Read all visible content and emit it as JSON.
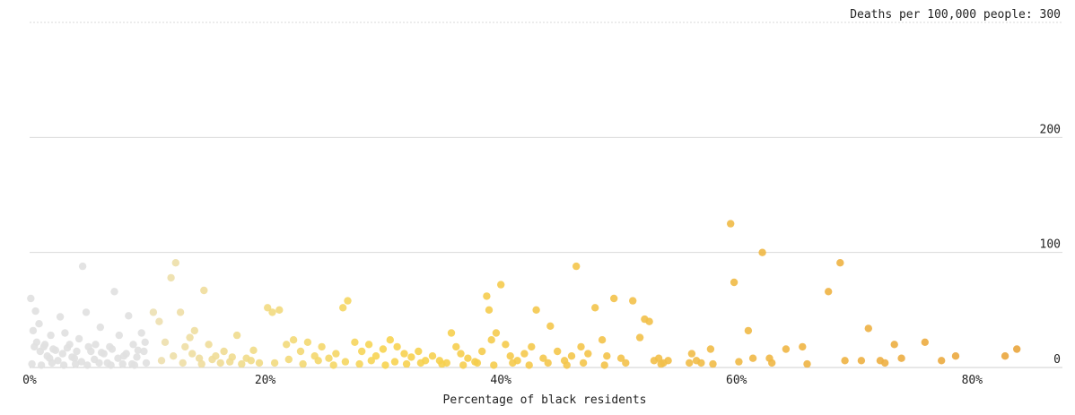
{
  "chart_data": {
    "type": "scatter",
    "xlabel": "Percentage of black residents",
    "ylabel_prefix": "Deaths per 100,000 people:",
    "xlim": [
      0,
      88
    ],
    "ylim": [
      0,
      300
    ],
    "x_ticks": [
      {
        "value": 0,
        "label": "0%"
      },
      {
        "value": 20,
        "label": "20%"
      },
      {
        "value": 40,
        "label": "40%"
      },
      {
        "value": 60,
        "label": "60%"
      },
      {
        "value": 80,
        "label": "80%"
      }
    ],
    "y_ticks": [
      {
        "value": 0,
        "label": "0"
      },
      {
        "value": 100,
        "label": "100"
      },
      {
        "value": 200,
        "label": "200"
      },
      {
        "value": 300,
        "label": "300"
      }
    ],
    "grid": true,
    "color_scale": {
      "low": "#e0e0e0",
      "mid": "#f7d451",
      "high": "#e9a43d"
    },
    "points": [
      [
        0.1,
        60
      ],
      [
        0.3,
        32
      ],
      [
        0.5,
        49
      ],
      [
        0.6,
        22
      ],
      [
        0.8,
        38
      ],
      [
        1.2,
        18
      ],
      [
        1.5,
        10
      ],
      [
        1.8,
        28
      ],
      [
        2.2,
        15
      ],
      [
        2.6,
        44
      ],
      [
        3.0,
        30
      ],
      [
        3.4,
        20
      ],
      [
        3.8,
        8
      ],
      [
        4.2,
        25
      ],
      [
        4.5,
        88
      ],
      [
        4.8,
        48
      ],
      [
        5.2,
        14
      ],
      [
        5.6,
        20
      ],
      [
        6.0,
        35
      ],
      [
        6.3,
        12
      ],
      [
        6.8,
        18
      ],
      [
        7.2,
        66
      ],
      [
        7.6,
        28
      ],
      [
        8.0,
        10
      ],
      [
        8.4,
        45
      ],
      [
        8.8,
        20
      ],
      [
        9.2,
        15
      ],
      [
        9.5,
        30
      ],
      [
        9.8,
        22
      ],
      [
        0.4,
        18
      ],
      [
        0.9,
        14
      ],
      [
        1.3,
        20
      ],
      [
        1.7,
        8
      ],
      [
        2.0,
        16
      ],
      [
        2.4,
        6
      ],
      [
        2.8,
        12
      ],
      [
        3.2,
        17
      ],
      [
        3.6,
        9
      ],
      [
        4.0,
        14
      ],
      [
        4.4,
        5
      ],
      [
        5.0,
        18
      ],
      [
        5.5,
        7
      ],
      [
        6.1,
        13
      ],
      [
        6.6,
        4
      ],
      [
        7.0,
        16
      ],
      [
        7.5,
        8
      ],
      [
        8.2,
        12
      ],
      [
        8.7,
        3
      ],
      [
        9.1,
        9
      ],
      [
        9.7,
        14
      ],
      [
        0.2,
        3
      ],
      [
        1.0,
        2
      ],
      [
        1.9,
        4
      ],
      [
        2.9,
        2
      ],
      [
        3.9,
        3
      ],
      [
        4.9,
        2
      ],
      [
        5.9,
        4
      ],
      [
        6.9,
        2
      ],
      [
        7.9,
        3
      ],
      [
        8.9,
        2
      ],
      [
        9.9,
        4
      ],
      [
        10.5,
        48
      ],
      [
        11.0,
        40
      ],
      [
        11.5,
        22
      ],
      [
        12.0,
        78
      ],
      [
        12.4,
        91
      ],
      [
        12.8,
        48
      ],
      [
        13.2,
        18
      ],
      [
        13.6,
        26
      ],
      [
        14.0,
        32
      ],
      [
        14.4,
        8
      ],
      [
        14.8,
        67
      ],
      [
        15.2,
        20
      ],
      [
        15.8,
        10
      ],
      [
        16.5,
        14
      ],
      [
        17.0,
        5
      ],
      [
        17.6,
        28
      ],
      [
        18.4,
        8
      ],
      [
        19.0,
        15
      ],
      [
        11.2,
        6
      ],
      [
        12.2,
        10
      ],
      [
        13.0,
        4
      ],
      [
        13.8,
        12
      ],
      [
        14.6,
        3
      ],
      [
        15.5,
        7
      ],
      [
        16.2,
        4
      ],
      [
        17.2,
        9
      ],
      [
        18.0,
        3
      ],
      [
        18.8,
        6
      ],
      [
        19.5,
        4
      ],
      [
        20.2,
        52
      ],
      [
        20.6,
        48
      ],
      [
        21.2,
        50
      ],
      [
        21.8,
        20
      ],
      [
        22.4,
        24
      ],
      [
        23.0,
        14
      ],
      [
        23.6,
        22
      ],
      [
        24.2,
        10
      ],
      [
        24.8,
        18
      ],
      [
        25.4,
        8
      ],
      [
        26.0,
        12
      ],
      [
        26.6,
        52
      ],
      [
        27.0,
        58
      ],
      [
        27.6,
        22
      ],
      [
        28.2,
        14
      ],
      [
        28.8,
        20
      ],
      [
        29.4,
        10
      ],
      [
        30.0,
        16
      ],
      [
        30.6,
        24
      ],
      [
        31.2,
        18
      ],
      [
        31.8,
        12
      ],
      [
        32.4,
        9
      ],
      [
        33.0,
        14
      ],
      [
        33.6,
        6
      ],
      [
        20.8,
        4
      ],
      [
        22.0,
        7
      ],
      [
        23.2,
        3
      ],
      [
        24.5,
        6
      ],
      [
        25.8,
        2
      ],
      [
        26.8,
        5
      ],
      [
        28.0,
        3
      ],
      [
        29.0,
        6
      ],
      [
        30.2,
        2
      ],
      [
        31.0,
        5
      ],
      [
        32.0,
        3
      ],
      [
        33.2,
        4
      ],
      [
        34.2,
        10
      ],
      [
        34.8,
        6
      ],
      [
        35.4,
        4
      ],
      [
        35.8,
        30
      ],
      [
        36.2,
        18
      ],
      [
        36.6,
        12
      ],
      [
        37.2,
        8
      ],
      [
        37.8,
        5
      ],
      [
        38.4,
        14
      ],
      [
        38.8,
        62
      ],
      [
        39.0,
        50
      ],
      [
        39.2,
        24
      ],
      [
        39.6,
        30
      ],
      [
        40.0,
        72
      ],
      [
        40.4,
        20
      ],
      [
        40.8,
        10
      ],
      [
        41.4,
        6
      ],
      [
        42.0,
        12
      ],
      [
        42.6,
        18
      ],
      [
        43.0,
        50
      ],
      [
        43.6,
        8
      ],
      [
        44.2,
        36
      ],
      [
        44.8,
        14
      ],
      [
        45.4,
        6
      ],
      [
        46.0,
        10
      ],
      [
        46.4,
        88
      ],
      [
        46.8,
        18
      ],
      [
        47.4,
        12
      ],
      [
        48.0,
        52
      ],
      [
        48.6,
        24
      ],
      [
        49.0,
        10
      ],
      [
        49.6,
        60
      ],
      [
        50.2,
        8
      ],
      [
        50.6,
        4
      ],
      [
        35.0,
        3
      ],
      [
        36.8,
        2
      ],
      [
        38.0,
        4
      ],
      [
        39.4,
        2
      ],
      [
        41.0,
        4
      ],
      [
        42.4,
        2
      ],
      [
        44.0,
        4
      ],
      [
        45.6,
        2
      ],
      [
        47.0,
        4
      ],
      [
        48.8,
        2
      ],
      [
        51.2,
        58
      ],
      [
        51.8,
        26
      ],
      [
        52.2,
        42
      ],
      [
        52.6,
        40
      ],
      [
        53.0,
        6
      ],
      [
        53.4,
        8
      ],
      [
        53.8,
        4
      ],
      [
        54.2,
        6
      ],
      [
        56.2,
        12
      ],
      [
        56.6,
        6
      ],
      [
        57.0,
        4
      ],
      [
        57.8,
        16
      ],
      [
        59.5,
        125
      ],
      [
        59.8,
        74
      ],
      [
        61.0,
        32
      ],
      [
        61.4,
        8
      ],
      [
        62.2,
        100
      ],
      [
        62.8,
        8
      ],
      [
        64.2,
        16
      ],
      [
        65.6,
        18
      ],
      [
        67.8,
        66
      ],
      [
        68.8,
        91
      ],
      [
        69.2,
        6
      ],
      [
        70.6,
        6
      ],
      [
        71.2,
        34
      ],
      [
        72.2,
        6
      ],
      [
        72.6,
        4
      ],
      [
        73.4,
        20
      ],
      [
        74.0,
        8
      ],
      [
        76.0,
        22
      ],
      [
        77.4,
        6
      ],
      [
        78.6,
        10
      ],
      [
        82.8,
        10
      ],
      [
        83.8,
        16
      ],
      [
        53.6,
        3
      ],
      [
        56.0,
        4
      ],
      [
        58.0,
        3
      ],
      [
        60.2,
        5
      ],
      [
        63.0,
        4
      ],
      [
        66.0,
        3
      ]
    ]
  }
}
